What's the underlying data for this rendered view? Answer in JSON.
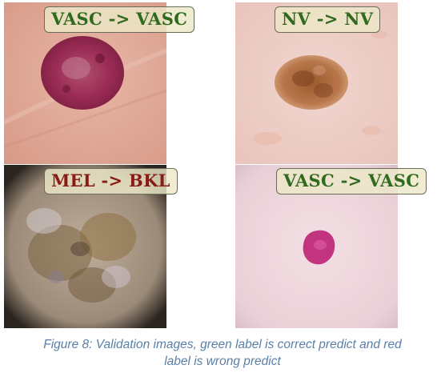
{
  "figure": {
    "panels": [
      {
        "label": "VASC -> VASC",
        "status": "correct",
        "color": "#2f6a1e"
      },
      {
        "label": "NV -> NV",
        "status": "correct",
        "color": "#2f6a1e"
      },
      {
        "label": "MEL -> BKL",
        "status": "wrong",
        "color": "#8a1a14"
      },
      {
        "label": "VASC -> VASC",
        "status": "correct",
        "color": "#2f6a1e"
      }
    ],
    "caption_line1": "Figure 8: Validation images, green label is correct predict and red",
    "caption_line2": "label is wrong predict"
  }
}
